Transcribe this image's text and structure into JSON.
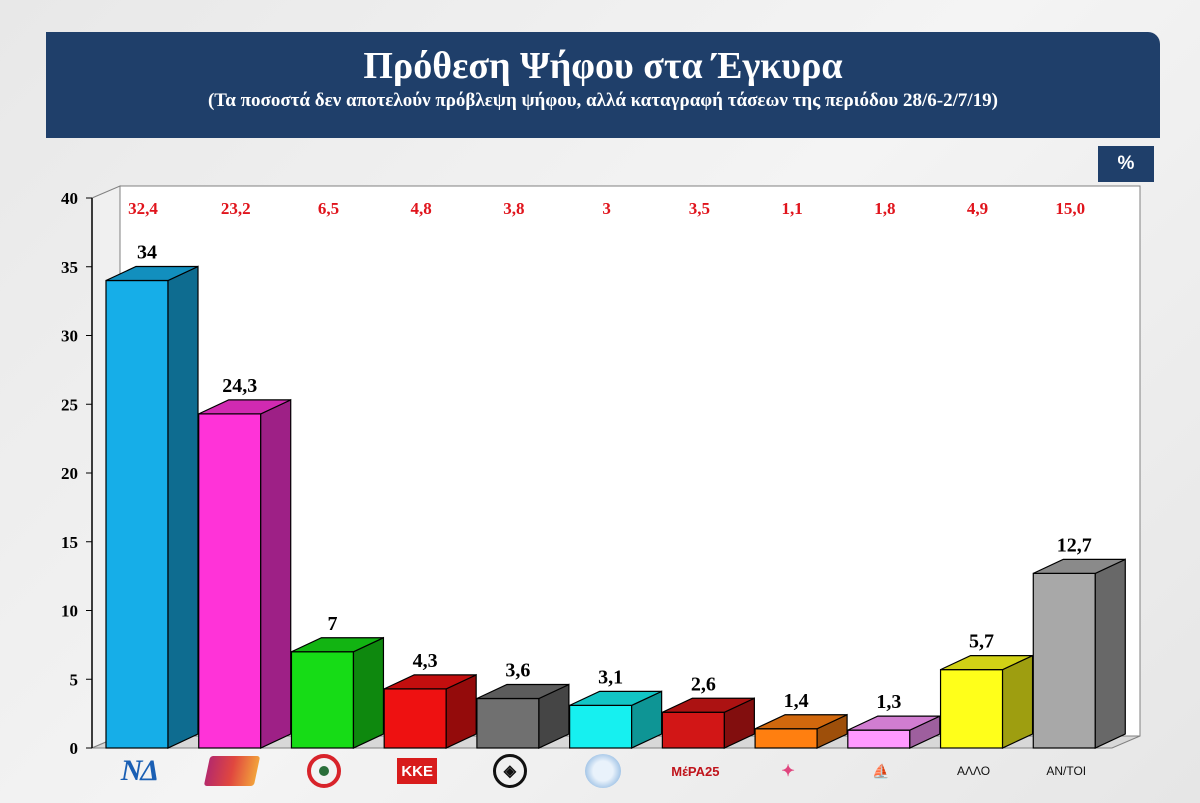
{
  "header": {
    "title": "Πρόθεση Ψήφου στα Έγκυρα",
    "subtitle": "(Τα ποσοστά δεν αποτελούν πρόβλεψη ψήφου, αλλά καταγραφή τάσεων της περιόδου 28/6-2/7/19)"
  },
  "unit_badge": "%",
  "colors": {
    "header_bg": "#1f3f6a",
    "top_label": "#e0141c"
  },
  "chart_data": {
    "type": "bar",
    "categories": [
      "ΝΔ",
      "ΣΥΡΙΖΑ",
      "ΚΙΝΑΛ",
      "ΚΚΕ",
      "ΧΑ",
      "ΕΛΛΗΝΙΚΗ ΛΥΣΗ",
      "ΜέΡΑ25",
      "ΚΕ",
      "ΠΕ",
      "ΑΛΛΟ",
      "ΑΝ/ΤΟΙ"
    ],
    "tick_labels": [
      "",
      "",
      "",
      "",
      "",
      "",
      "",
      "",
      "",
      "ΑΛΛΟ",
      "ΑΝ/ΤΟΙ"
    ],
    "logo_icons": [
      "nd-logo-icon",
      "syriza-logo-icon",
      "pasok-logo-icon",
      "kke-logo-icon",
      "xa-logo-icon",
      "elliniki-lysi-logo-icon",
      "mera25-logo-icon",
      "ke-logo-icon",
      "pe-logo-icon",
      "",
      ""
    ],
    "values": [
      34,
      24.3,
      7,
      4.3,
      3.6,
      3.1,
      2.6,
      1.4,
      1.3,
      5.7,
      12.7
    ],
    "value_labels": [
      "34",
      "24,3",
      "7",
      "4,3",
      "3,6",
      "3,1",
      "2,6",
      "1,4",
      "1,3",
      "5,7",
      "12,7"
    ],
    "top_labels": [
      "32,4",
      "23,2",
      "6,5",
      "4,8",
      "3,8",
      "3",
      "3,5",
      "1,1",
      "1,8",
      "4,9",
      "15,0"
    ],
    "bar_colors": [
      "#16aee8",
      "#ff33d8",
      "#16dc16",
      "#ee1111",
      "#707070",
      "#16f0f0",
      "#d21616",
      "#ff7f10",
      "#ff99ff",
      "#ffff1a",
      "#a8a8a8"
    ],
    "ylim": [
      0,
      40
    ],
    "yticks": [
      0,
      5,
      10,
      15,
      20,
      25,
      30,
      35,
      40
    ],
    "grid": false,
    "xlabel": "",
    "ylabel": ""
  }
}
